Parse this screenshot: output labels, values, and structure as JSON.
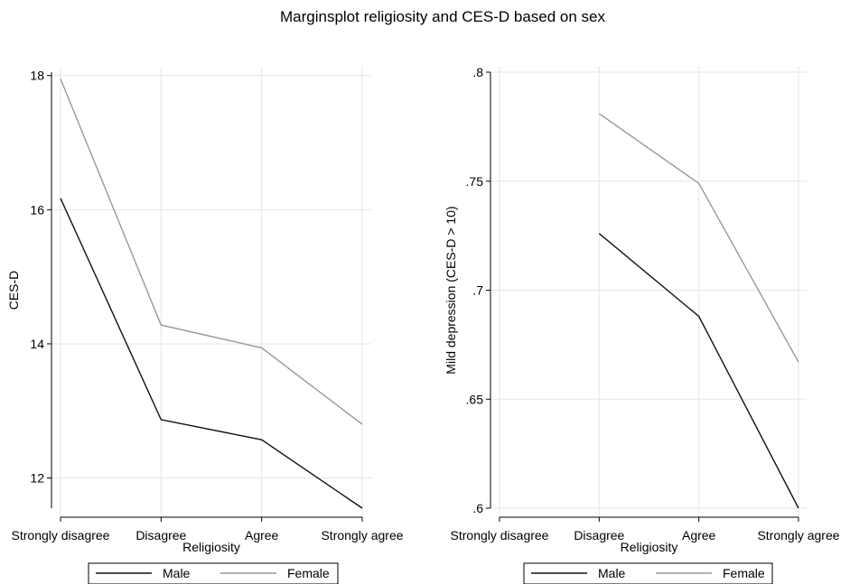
{
  "figure": {
    "title": "Marginsplot religiosity and CES-D based on sex"
  },
  "colors": {
    "male": "#111111",
    "female": "#999999",
    "grid": "#e6e6e6",
    "axis": "#000000"
  },
  "chart_data": [
    {
      "type": "line",
      "xlabel": "Religiosity",
      "ylabel": "CES-D",
      "categories": [
        "Strongly disagree",
        "Disagree",
        "Agree",
        "Strongly agree"
      ],
      "ylim": [
        11.55,
        18.05
      ],
      "yticks": [
        12,
        14,
        16,
        18
      ],
      "ytick_labels": [
        "12",
        "14",
        "16",
        "18"
      ],
      "grid": true,
      "legend": "bottom",
      "series": [
        {
          "name": "Male",
          "values": [
            16.17,
            12.87,
            12.57,
            11.55
          ]
        },
        {
          "name": "Female",
          "values": [
            17.95,
            14.28,
            13.94,
            12.8
          ]
        }
      ]
    },
    {
      "type": "line",
      "xlabel": "Religiosity",
      "ylabel": "Mild depression (CES-D > 10)",
      "categories": [
        "Strongly disagree",
        "Disagree",
        "Agree",
        "Strongly agree"
      ],
      "ylim": [
        0.6,
        0.8
      ],
      "yticks": [
        0.6,
        0.65,
        0.7,
        0.75,
        0.8
      ],
      "ytick_labels": [
        ".6",
        ".65",
        ".7",
        ".75",
        ".8"
      ],
      "grid": true,
      "legend": "bottom",
      "series": [
        {
          "name": "Male",
          "values": [
            null,
            0.726,
            0.688,
            0.6
          ]
        },
        {
          "name": "Female",
          "values": [
            null,
            0.781,
            0.749,
            0.667
          ]
        }
      ]
    }
  ]
}
